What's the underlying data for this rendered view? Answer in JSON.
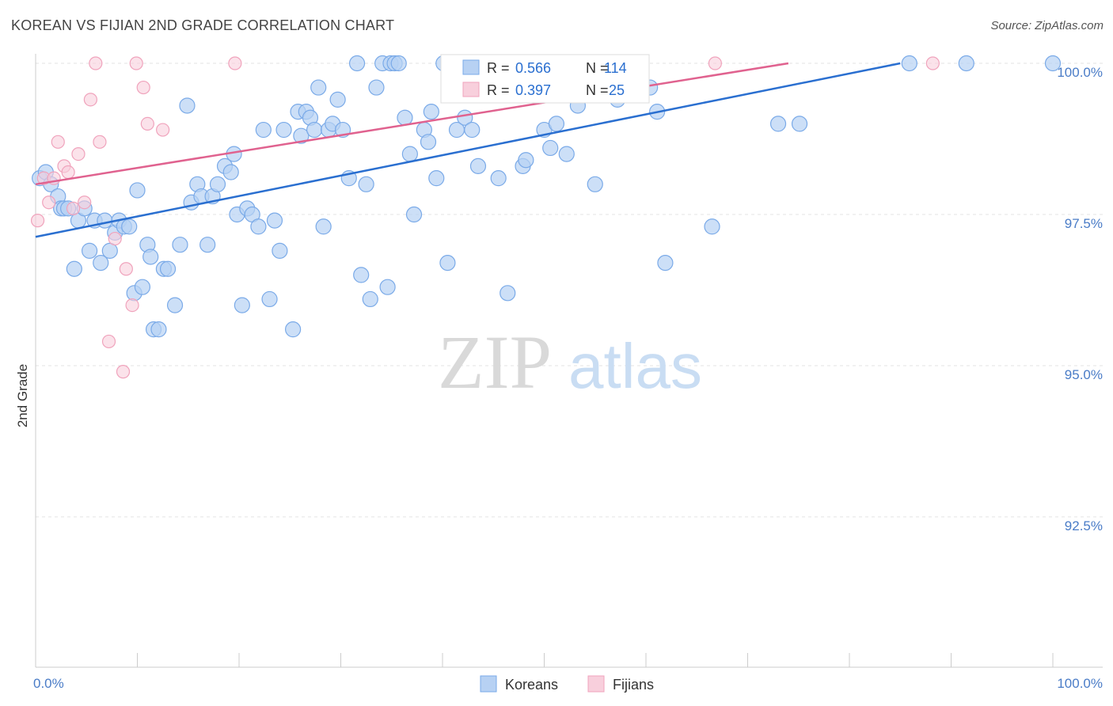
{
  "title": "KOREAN VS FIJIAN 2ND GRADE CORRELATION CHART",
  "source": "Source: ZipAtlas.com",
  "watermark": {
    "zip": "ZIP",
    "atlas": "atlas"
  },
  "chart_data": {
    "type": "scatter",
    "xlabel": "",
    "ylabel": "2nd Grade",
    "xlim": [
      0,
      100
    ],
    "ylim": [
      90.0,
      100.2
    ],
    "x_tick_labels": [
      "0.0%",
      "100.0%"
    ],
    "y_ticks": [
      {
        "value": 100.0,
        "label": "100.0%"
      },
      {
        "value": 97.5,
        "label": "97.5%"
      },
      {
        "value": 95.0,
        "label": "95.0%"
      },
      {
        "value": 92.5,
        "label": "92.5%"
      }
    ],
    "stats": [
      {
        "r_label": "R =",
        "r_value": "0.566",
        "n_label": "N =",
        "n_value": "114"
      },
      {
        "r_label": "R =",
        "r_value": "0.397",
        "n_label": "N =",
        "n_value": "25"
      }
    ],
    "series": [
      {
        "name": "Koreans",
        "color": "#7aaae8",
        "fill": "#b7d1f3",
        "line_color": "#2a6fd0",
        "trend": [
          [
            0,
            97.13
          ],
          [
            85,
            100.0
          ]
        ],
        "points": [
          [
            0.4,
            98.1
          ],
          [
            1.0,
            98.2
          ],
          [
            1.5,
            98.0
          ],
          [
            2.2,
            97.8
          ],
          [
            2.5,
            97.6
          ],
          [
            2.8,
            97.6
          ],
          [
            3.2,
            97.6
          ],
          [
            3.8,
            96.6
          ],
          [
            4.2,
            97.4
          ],
          [
            4.8,
            97.6
          ],
          [
            5.3,
            96.9
          ],
          [
            5.8,
            97.4
          ],
          [
            6.4,
            96.7
          ],
          [
            6.8,
            97.4
          ],
          [
            7.3,
            96.9
          ],
          [
            7.8,
            97.2
          ],
          [
            8.2,
            97.4
          ],
          [
            8.7,
            97.3
          ],
          [
            9.2,
            97.3
          ],
          [
            9.7,
            96.2
          ],
          [
            10.0,
            97.9
          ],
          [
            10.5,
            96.3
          ],
          [
            11.0,
            97.0
          ],
          [
            11.3,
            96.8
          ],
          [
            11.6,
            95.6
          ],
          [
            12.1,
            95.6
          ],
          [
            12.6,
            96.6
          ],
          [
            13.0,
            96.6
          ],
          [
            13.7,
            96.0
          ],
          [
            14.2,
            97.0
          ],
          [
            14.9,
            99.3
          ],
          [
            15.3,
            97.7
          ],
          [
            15.9,
            98.0
          ],
          [
            16.3,
            97.8
          ],
          [
            16.9,
            97.0
          ],
          [
            17.4,
            97.8
          ],
          [
            17.9,
            98.0
          ],
          [
            18.6,
            98.3
          ],
          [
            19.2,
            98.2
          ],
          [
            19.5,
            98.5
          ],
          [
            19.8,
            97.5
          ],
          [
            20.3,
            96.0
          ],
          [
            20.8,
            97.6
          ],
          [
            21.3,
            97.5
          ],
          [
            21.9,
            97.3
          ],
          [
            22.4,
            98.9
          ],
          [
            23.0,
            96.1
          ],
          [
            23.5,
            97.4
          ],
          [
            24.0,
            96.9
          ],
          [
            24.4,
            98.9
          ],
          [
            25.3,
            95.6
          ],
          [
            25.8,
            99.2
          ],
          [
            26.1,
            98.8
          ],
          [
            26.6,
            99.2
          ],
          [
            27.0,
            99.1
          ],
          [
            27.4,
            98.9
          ],
          [
            27.8,
            99.6
          ],
          [
            28.3,
            97.3
          ],
          [
            28.8,
            98.9
          ],
          [
            29.2,
            99.0
          ],
          [
            29.7,
            99.4
          ],
          [
            30.2,
            98.9
          ],
          [
            30.8,
            98.1
          ],
          [
            31.6,
            100.0
          ],
          [
            32.0,
            96.5
          ],
          [
            32.5,
            98.0
          ],
          [
            32.9,
            96.1
          ],
          [
            33.5,
            99.6
          ],
          [
            34.1,
            100.0
          ],
          [
            34.6,
            96.3
          ],
          [
            34.9,
            100.0
          ],
          [
            35.3,
            100.0
          ],
          [
            35.7,
            100.0
          ],
          [
            36.3,
            99.1
          ],
          [
            36.8,
            98.5
          ],
          [
            37.2,
            97.5
          ],
          [
            38.2,
            98.9
          ],
          [
            38.6,
            98.7
          ],
          [
            38.9,
            99.2
          ],
          [
            39.4,
            98.1
          ],
          [
            40.1,
            100.0
          ],
          [
            40.5,
            96.7
          ],
          [
            40.9,
            100.0
          ],
          [
            41.4,
            98.9
          ],
          [
            42.2,
            99.1
          ],
          [
            42.9,
            98.9
          ],
          [
            43.5,
            98.3
          ],
          [
            45.5,
            98.1
          ],
          [
            46.4,
            96.2
          ],
          [
            47.1,
            100.0
          ],
          [
            47.9,
            98.3
          ],
          [
            48.2,
            98.4
          ],
          [
            49.3,
            100.0
          ],
          [
            50.0,
            98.9
          ],
          [
            50.6,
            98.6
          ],
          [
            51.2,
            99.0
          ],
          [
            52.2,
            98.5
          ],
          [
            53.3,
            99.3
          ],
          [
            54.0,
            100.0
          ],
          [
            55.0,
            98.0
          ],
          [
            55.3,
            100.0
          ],
          [
            57.2,
            99.4
          ],
          [
            58.0,
            100.0
          ],
          [
            59.2,
            99.6
          ],
          [
            60.4,
            99.6
          ],
          [
            61.1,
            99.2
          ],
          [
            61.9,
            96.7
          ],
          [
            66.5,
            97.3
          ],
          [
            73.0,
            99.0
          ],
          [
            75.1,
            99.0
          ],
          [
            85.9,
            100.0
          ],
          [
            91.5,
            100.0
          ],
          [
            100.0,
            100.0
          ]
        ]
      },
      {
        "name": "Fijians",
        "color": "#f0a3bc",
        "fill": "#f8cfdc",
        "line_color": "#e0628f",
        "trend": [
          [
            0,
            98.0
          ],
          [
            74,
            100.0
          ]
        ],
        "points": [
          [
            0.2,
            97.4
          ],
          [
            0.8,
            98.1
          ],
          [
            1.3,
            97.7
          ],
          [
            1.8,
            98.1
          ],
          [
            2.2,
            98.7
          ],
          [
            2.8,
            98.3
          ],
          [
            3.2,
            98.2
          ],
          [
            3.7,
            97.6
          ],
          [
            4.2,
            98.5
          ],
          [
            4.8,
            97.7
          ],
          [
            5.4,
            99.4
          ],
          [
            5.9,
            100.0
          ],
          [
            6.3,
            98.7
          ],
          [
            7.2,
            95.4
          ],
          [
            7.8,
            97.1
          ],
          [
            8.6,
            94.9
          ],
          [
            8.9,
            96.6
          ],
          [
            9.5,
            96.0
          ],
          [
            9.9,
            100.0
          ],
          [
            10.6,
            99.6
          ],
          [
            11.0,
            99.0
          ],
          [
            12.5,
            98.9
          ],
          [
            19.6,
            100.0
          ],
          [
            66.8,
            100.0
          ],
          [
            88.2,
            100.0
          ]
        ]
      }
    ]
  }
}
